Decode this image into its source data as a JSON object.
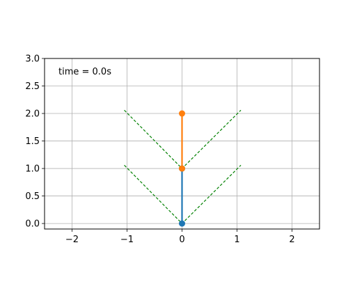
{
  "chart_data": {
    "type": "line",
    "title": "",
    "xlabel": "",
    "ylabel": "",
    "xlim": [
      -2.5,
      2.5
    ],
    "ylim": [
      -0.1,
      3.0
    ],
    "grid": true,
    "xticks": [
      -2,
      -1,
      0,
      1,
      2
    ],
    "xtick_labels": [
      "−2",
      "−1",
      "0",
      "1",
      "2"
    ],
    "yticks": [
      0.0,
      0.5,
      1.0,
      1.5,
      2.0,
      2.5,
      3.0
    ],
    "ytick_labels": [
      "0.0",
      "0.5",
      "1.0",
      "1.5",
      "2.0",
      "2.5",
      "3.0"
    ],
    "annotation": "time = 0.0s",
    "colors": {
      "link1": "#1f77b4",
      "link2": "#ff7f0e",
      "guide": "#008000",
      "grid": "#b0b0b0"
    },
    "series": [
      {
        "points": [
          [
            0,
            0
          ],
          [
            0,
            1
          ]
        ],
        "color": "#1f77b4",
        "style": "solid",
        "marker_at_start": true
      },
      {
        "points": [
          [
            0,
            1
          ],
          [
            0,
            2
          ]
        ],
        "color": "#ff7f0e",
        "style": "solid",
        "marker_at_start": true
      },
      {
        "points": [
          [
            -1.05,
            2.06
          ],
          [
            0,
            1
          ],
          [
            1.07,
            2.06
          ]
        ],
        "color": "#008000",
        "style": "dashed"
      },
      {
        "points": [
          [
            -1.05,
            1.06
          ],
          [
            0,
            0
          ],
          [
            1.07,
            1.06
          ]
        ],
        "color": "#008000",
        "style": "dashed"
      }
    ]
  }
}
